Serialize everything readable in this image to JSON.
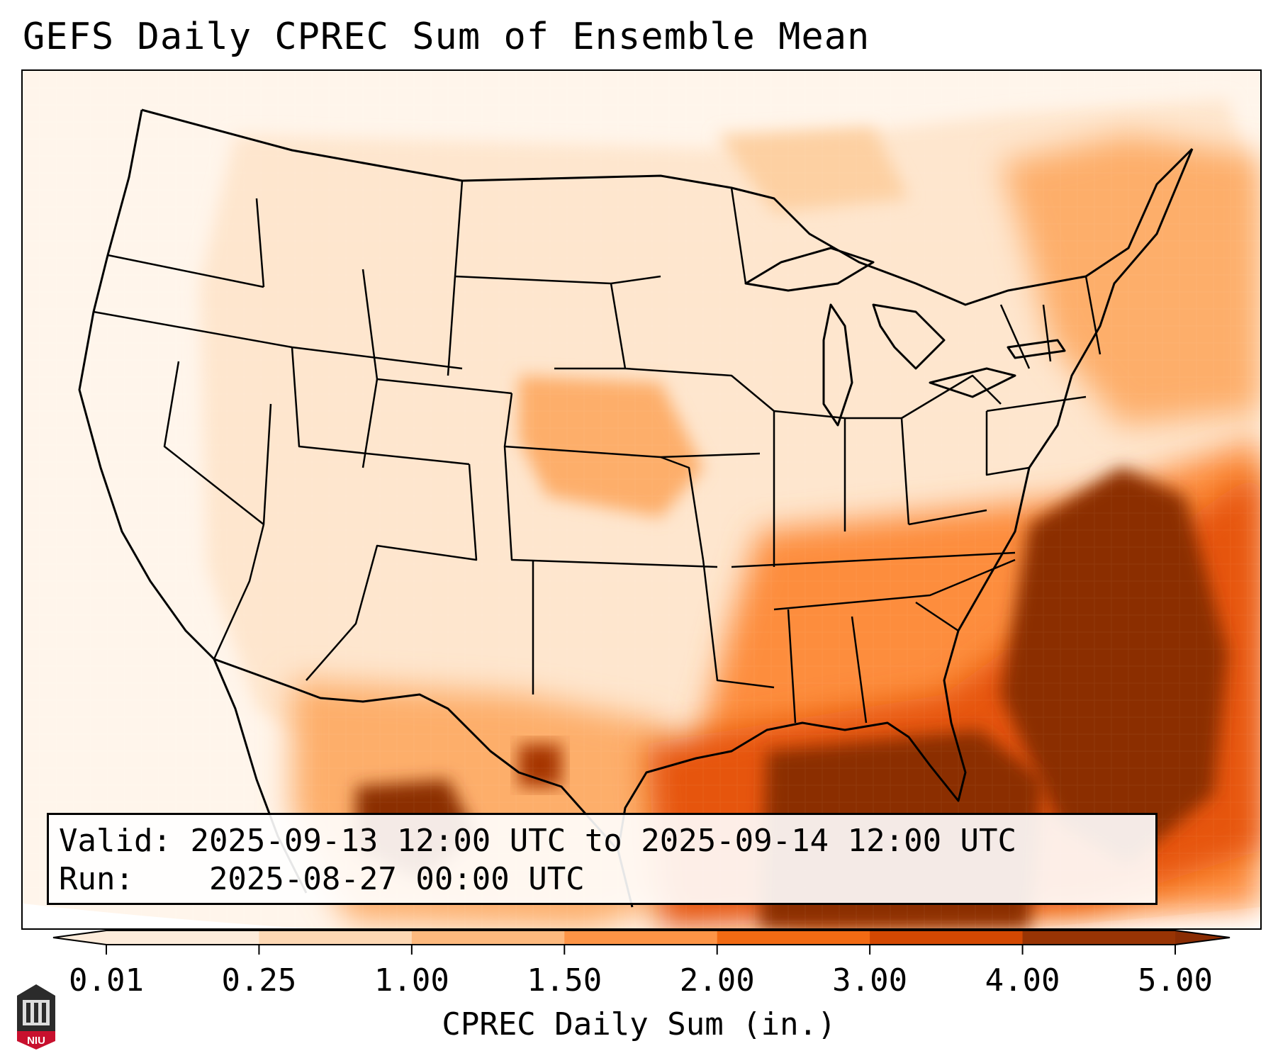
{
  "title": "GEFS Daily CPREC Sum of Ensemble Mean",
  "info": {
    "valid_label": "Valid:",
    "valid_value": "2025-09-13 12:00 UTC to 2025-09-14 12:00 UTC",
    "run_label": "Run:",
    "run_value": "2025-08-27 00:00 UTC"
  },
  "colorbar": {
    "label": "CPREC Daily Sum (in.)",
    "ticks": [
      "0.01",
      "0.25",
      "1.00",
      "1.50",
      "2.00",
      "3.00",
      "4.00",
      "5.00"
    ],
    "colors": [
      "#fdecdb",
      "#fdd8b4",
      "#fdb97e",
      "#fd9446",
      "#f16a13",
      "#d34802",
      "#983404",
      "#8a2d04"
    ]
  },
  "logo": {
    "text": "NIU"
  },
  "colors": {
    "background_low": "#fff5eb",
    "land_light": "#fee6ce",
    "max": "#8b2e03",
    "border_line": "#000000"
  },
  "icons": [
    "niu-logo-icon"
  ]
}
